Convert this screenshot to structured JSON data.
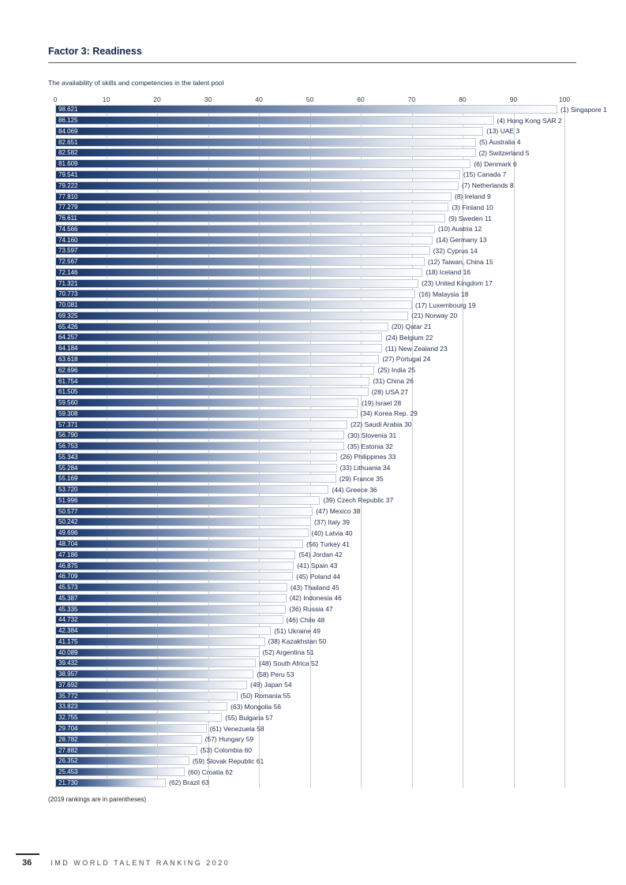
{
  "page": {
    "title": "Factor 3: Readiness",
    "subtitle": "The availability of skills and competencies in the talent pool",
    "footnote": "(2019 rankings are in parentheses)",
    "footer": {
      "page_number": "36",
      "text": "IMD WORLD TALENT RANKING 2020"
    }
  },
  "chart_data": {
    "type": "bar",
    "orientation": "horizontal",
    "title": "Factor 3: Readiness",
    "subtitle": "The availability of skills and competencies in the talent pool",
    "xlabel": "",
    "ylabel": "",
    "xlim": [
      0,
      100
    ],
    "x_ticks": [
      0,
      10,
      20,
      30,
      40,
      50,
      60,
      70,
      80,
      90,
      100
    ],
    "grid": true,
    "bar_color_start": "#16315e",
    "bar_color_end": "#ffffff",
    "bars": [
      {
        "score": "98.621",
        "value": 98.621,
        "label": "(1) Singapore 1"
      },
      {
        "score": "86.125",
        "value": 86.125,
        "label": "(4) Hong Kong SAR 2"
      },
      {
        "score": "84.069",
        "value": 84.069,
        "label": "(13) UAE 3"
      },
      {
        "score": "82.651",
        "value": 82.651,
        "label": "(5) Australia 4"
      },
      {
        "score": "82.582",
        "value": 82.582,
        "label": "(2) Switzerland 5"
      },
      {
        "score": "81.609",
        "value": 81.609,
        "label": "(6) Denmark 6"
      },
      {
        "score": "79.541",
        "value": 79.541,
        "label": "(15) Canada 7"
      },
      {
        "score": "79.222",
        "value": 79.222,
        "label": "(7) Netherlands 8"
      },
      {
        "score": "77.810",
        "value": 77.81,
        "label": "(8) Ireland 9"
      },
      {
        "score": "77.279",
        "value": 77.279,
        "label": "(3) Finland 10"
      },
      {
        "score": "76.611",
        "value": 76.611,
        "label": "(9) Sweden 11"
      },
      {
        "score": "74.566",
        "value": 74.566,
        "label": "(10) Austria 12"
      },
      {
        "score": "74.160",
        "value": 74.16,
        "label": "(14) Germany 13"
      },
      {
        "score": "73.597",
        "value": 73.597,
        "label": "(32) Cyprus 14"
      },
      {
        "score": "72.567",
        "value": 72.567,
        "label": "(12) Taiwan, China 15"
      },
      {
        "score": "72.146",
        "value": 72.146,
        "label": "(18) Iceland 16"
      },
      {
        "score": "71.321",
        "value": 71.321,
        "label": "(23) United Kingdom 17"
      },
      {
        "score": "70.773",
        "value": 70.773,
        "label": "(16) Malaysia 18"
      },
      {
        "score": "70.081",
        "value": 70.081,
        "label": "(17) Luxembourg 19"
      },
      {
        "score": "69.325",
        "value": 69.325,
        "label": "(21) Norway 20"
      },
      {
        "score": "65.426",
        "value": 65.426,
        "label": "(20) Qatar 21"
      },
      {
        "score": "64.257",
        "value": 64.257,
        "label": "(24) Belgium 22"
      },
      {
        "score": "64.184",
        "value": 64.184,
        "label": "(11) New Zealand 23"
      },
      {
        "score": "63.618",
        "value": 63.618,
        "label": "(27) Portugal 24"
      },
      {
        "score": "62.696",
        "value": 62.696,
        "label": "(25) India 25"
      },
      {
        "score": "61.754",
        "value": 61.754,
        "label": "(31) China 26"
      },
      {
        "score": "61.505",
        "value": 61.505,
        "label": "(28) USA 27"
      },
      {
        "score": "59.560",
        "value": 59.56,
        "label": "(19) Israel 28"
      },
      {
        "score": "59.308",
        "value": 59.308,
        "label": "(34) Korea Rep. 29"
      },
      {
        "score": "57.371",
        "value": 57.371,
        "label": "(22) Saudi Arabia 30"
      },
      {
        "score": "56.790",
        "value": 56.79,
        "label": "(30) Slovenia 31"
      },
      {
        "score": "56.753",
        "value": 56.753,
        "label": "(35) Estonia 32"
      },
      {
        "score": "55.343",
        "value": 55.343,
        "label": "(26) Philippines 33"
      },
      {
        "score": "55.284",
        "value": 55.284,
        "label": "(33) Lithuania 34"
      },
      {
        "score": "55.169",
        "value": 55.169,
        "label": "(29) France 35"
      },
      {
        "score": "53.720",
        "value": 53.72,
        "label": "(44) Greece 36"
      },
      {
        "score": "51.996",
        "value": 51.996,
        "label": "(39) Czech Republic 37"
      },
      {
        "score": "50.577",
        "value": 50.577,
        "label": "(47) Mexico 38"
      },
      {
        "score": "50.242",
        "value": 50.242,
        "label": "(37) Italy 39"
      },
      {
        "score": "49.696",
        "value": 49.696,
        "label": "(40) Latvia 40"
      },
      {
        "score": "48.704",
        "value": 48.704,
        "label": "(56) Turkey 41"
      },
      {
        "score": "47.186",
        "value": 47.186,
        "label": "(54) Jordan 42"
      },
      {
        "score": "46.875",
        "value": 46.875,
        "label": "(41) Spain 43"
      },
      {
        "score": "46.709",
        "value": 46.709,
        "label": "(45) Poland 44"
      },
      {
        "score": "45.573",
        "value": 45.573,
        "label": "(43) Thailand 45"
      },
      {
        "score": "45.387",
        "value": 45.387,
        "label": "(42) Indonesia 46"
      },
      {
        "score": "45.335",
        "value": 45.335,
        "label": "(36) Russia 47"
      },
      {
        "score": "44.732",
        "value": 44.732,
        "label": "(46) Chile 48"
      },
      {
        "score": "42.384",
        "value": 42.384,
        "label": "(51) Ukraine 49"
      },
      {
        "score": "41.175",
        "value": 41.175,
        "label": "(38) Kazakhstan 50"
      },
      {
        "score": "40.089",
        "value": 40.089,
        "label": "(52) Argentina 51"
      },
      {
        "score": "39.432",
        "value": 39.432,
        "label": "(48) South Africa 52"
      },
      {
        "score": "38.957",
        "value": 38.957,
        "label": "(58) Peru 53"
      },
      {
        "score": "37.692",
        "value": 37.692,
        "label": "(49) Japan 54"
      },
      {
        "score": "35.772",
        "value": 35.772,
        "label": "(50) Romania 55"
      },
      {
        "score": "33.823",
        "value": 33.823,
        "label": "(63) Mongolia 56"
      },
      {
        "score": "32.755",
        "value": 32.755,
        "label": "(55) Bulgaria 57"
      },
      {
        "score": "29.704",
        "value": 29.704,
        "label": "(61) Venezuela 58"
      },
      {
        "score": "28.782",
        "value": 28.782,
        "label": "(57) Hungary 59"
      },
      {
        "score": "27.882",
        "value": 27.882,
        "label": "(53) Colombia 60"
      },
      {
        "score": "26.352",
        "value": 26.352,
        "label": "(59) Slovak Republic 61"
      },
      {
        "score": "25.453",
        "value": 25.453,
        "label": "(60) Croatia 62"
      },
      {
        "score": "21.730",
        "value": 21.73,
        "label": "(62) Brazil 63"
      }
    ]
  }
}
